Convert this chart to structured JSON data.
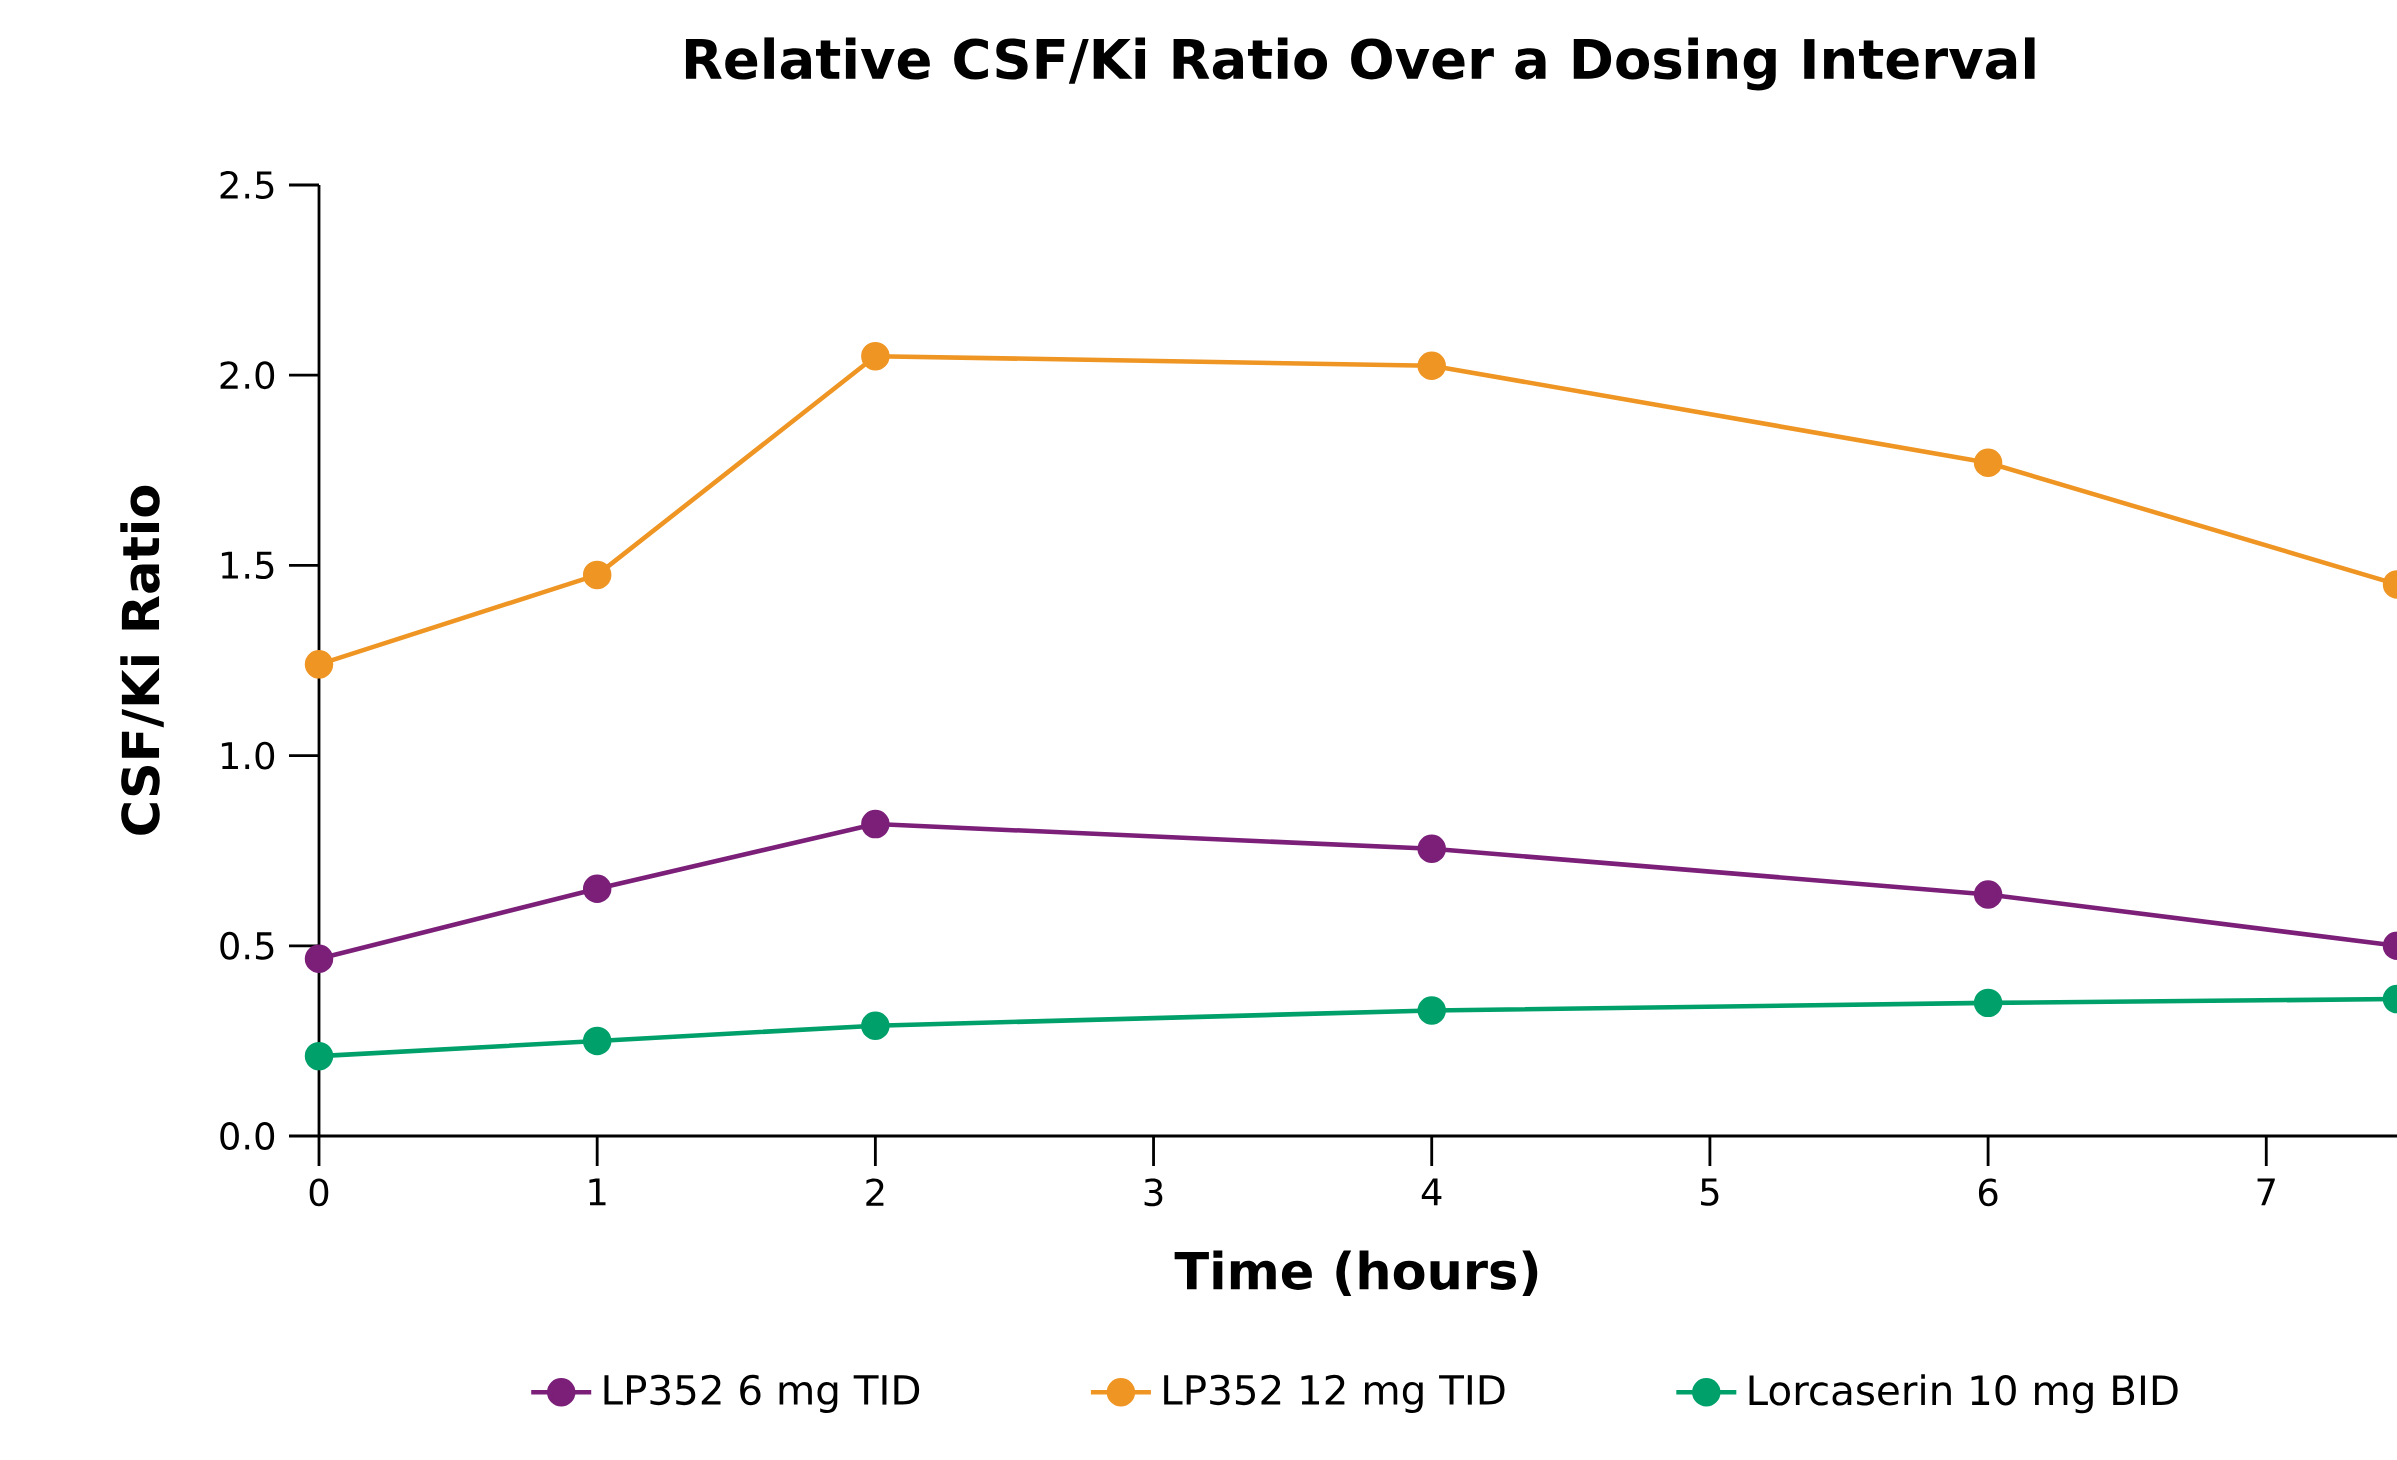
{
  "chart_data": {
    "type": "line",
    "title": "Relative CSF/Ki Ratio Over a Dosing Interval",
    "xlabel": "Time (hours)",
    "ylabel": "CSF/Ki Ratio",
    "xlim": [
      0,
      7.47
    ],
    "xticks": [
      0,
      1,
      2,
      3,
      4,
      5,
      6,
      7
    ],
    "ylim": [
      0,
      2.5
    ],
    "yticks": [
      {
        "value": 0,
        "label": "0.0"
      },
      0.5,
      {
        "value": 1,
        "label": "1.0"
      },
      1.5,
      {
        "value": 2,
        "label": "2.0"
      },
      2.5
    ],
    "x": [
      0,
      1,
      2,
      4,
      6,
      7.47
    ],
    "series": [
      {
        "name": "LP352 6 mg TID",
        "color": "#7b1f79",
        "values": [
          0.466,
          0.65,
          0.82,
          0.755,
          0.635,
          0.5
        ]
      },
      {
        "name": "LP352 12 mg TID",
        "color": "#ef9523",
        "values": [
          1.24,
          1.475,
          2.05,
          2.025,
          1.77,
          1.45
        ]
      },
      {
        "name": "Lorcaserin 10 mg BID",
        "color": "#00a06a",
        "values": [
          0.21,
          0.25,
          0.29,
          0.33,
          0.35,
          0.36
        ]
      }
    ],
    "marker": "circle",
    "line_style": "solid",
    "legend": "bottom",
    "grid": false
  }
}
